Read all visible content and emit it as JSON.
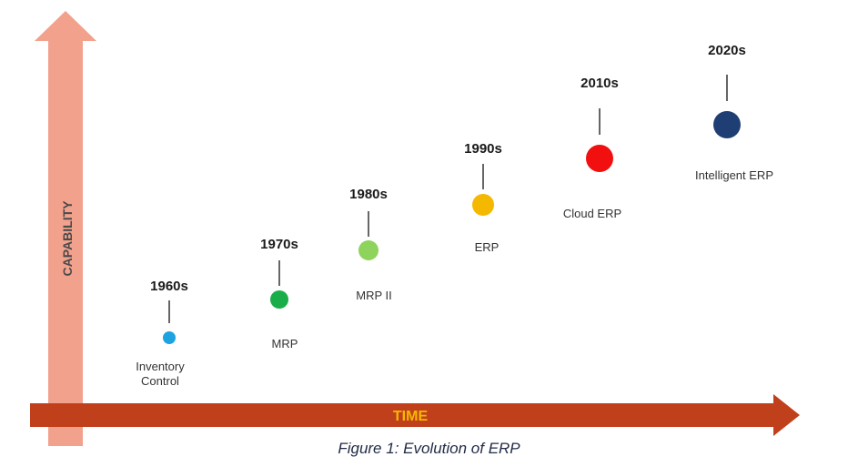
{
  "figure": {
    "caption": "Figure 1: Evolution of ERP",
    "y_axis_label": "CAPABILITY",
    "x_axis_label": "TIME"
  },
  "colors": {
    "capability_arrow": "#F2A18D",
    "time_arrow": "#C0401C",
    "time_label": "#F5B800",
    "capability_label": "#4A4A4A",
    "caption": "#1F2A44"
  },
  "eras": [
    {
      "year": "1960s",
      "label_lines": [
        "Inventory",
        "Control"
      ],
      "color": "#1FA3E0"
    },
    {
      "year": "1970s",
      "label_lines": [
        "MRP"
      ],
      "color": "#1AAE4B"
    },
    {
      "year": "1980s",
      "label_lines": [
        "MRP II"
      ],
      "color": "#8ED35C"
    },
    {
      "year": "1990s",
      "label_lines": [
        "ERP"
      ],
      "color": "#F5B800"
    },
    {
      "year": "2010s",
      "label_lines": [
        "Cloud ERP"
      ],
      "color": "#F20F0F"
    },
    {
      "year": "2020s",
      "label_lines": [
        "Intelligent ERP"
      ],
      "color": "#1F3F74"
    }
  ]
}
